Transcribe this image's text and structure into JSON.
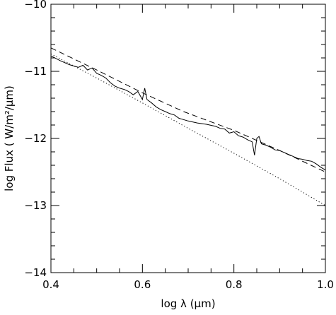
{
  "chart_data": {
    "type": "line",
    "title": "",
    "xlabel": "log λ (μm)",
    "ylabel": "log Flux  ( W/m²/μm)",
    "xlim": [
      0.4,
      1.0
    ],
    "ylim": [
      -14,
      -10
    ],
    "x_ticks": [
      0.4,
      0.6,
      0.8,
      1.0
    ],
    "x_tick_labels": [
      "0.4",
      "0.6",
      "0.8",
      "1.0"
    ],
    "y_ticks": [
      -14,
      -13,
      -12,
      -11,
      -10
    ],
    "y_tick_labels": [
      "−14",
      "−13",
      "−12",
      "−11",
      "−10"
    ],
    "grid": false,
    "legend": "none",
    "series": [
      {
        "style": "solid",
        "color": "#000000",
        "x": [
          0.4,
          0.42,
          0.44,
          0.46,
          0.47,
          0.48,
          0.49,
          0.5,
          0.51,
          0.52,
          0.53,
          0.54,
          0.55,
          0.56,
          0.57,
          0.58,
          0.59,
          0.6,
          0.605,
          0.61,
          0.62,
          0.63,
          0.64,
          0.65,
          0.66,
          0.67,
          0.68,
          0.7,
          0.72,
          0.74,
          0.76,
          0.77,
          0.78,
          0.79,
          0.8,
          0.81,
          0.82,
          0.83,
          0.84,
          0.845,
          0.85,
          0.855,
          0.86,
          0.87,
          0.88,
          0.89,
          0.9,
          0.91,
          0.92,
          0.93,
          0.94,
          0.95,
          0.96,
          0.97,
          0.98,
          0.99,
          1.0
        ],
        "y": [
          -10.77,
          -10.84,
          -10.9,
          -10.94,
          -10.91,
          -10.98,
          -10.95,
          -11.03,
          -11.06,
          -11.1,
          -11.17,
          -11.22,
          -11.25,
          -11.27,
          -11.3,
          -11.35,
          -11.3,
          -11.42,
          -11.25,
          -11.42,
          -11.47,
          -11.53,
          -11.57,
          -11.6,
          -11.63,
          -11.65,
          -11.7,
          -11.74,
          -11.77,
          -11.79,
          -11.82,
          -11.85,
          -11.86,
          -11.92,
          -11.9,
          -11.96,
          -11.98,
          -12.02,
          -12.05,
          -12.25,
          -12.0,
          -11.97,
          -12.08,
          -12.1,
          -12.13,
          -12.17,
          -12.18,
          -12.21,
          -12.24,
          -12.27,
          -12.3,
          -12.31,
          -12.33,
          -12.34,
          -12.38,
          -12.43,
          -12.47
        ]
      },
      {
        "style": "dashed",
        "color": "#000000",
        "x": [
          0.4,
          0.5,
          0.6,
          0.69,
          0.8,
          0.9,
          1.0
        ],
        "y": [
          -10.65,
          -10.98,
          -11.32,
          -11.6,
          -11.88,
          -12.18,
          -12.5
        ]
      },
      {
        "style": "dotted",
        "color": "#000000",
        "x": [
          0.4,
          0.5,
          0.6,
          0.7,
          0.8,
          0.9,
          1.0
        ],
        "y": [
          -10.74,
          -11.1,
          -11.47,
          -11.85,
          -12.22,
          -12.6,
          -13.0
        ]
      }
    ]
  }
}
